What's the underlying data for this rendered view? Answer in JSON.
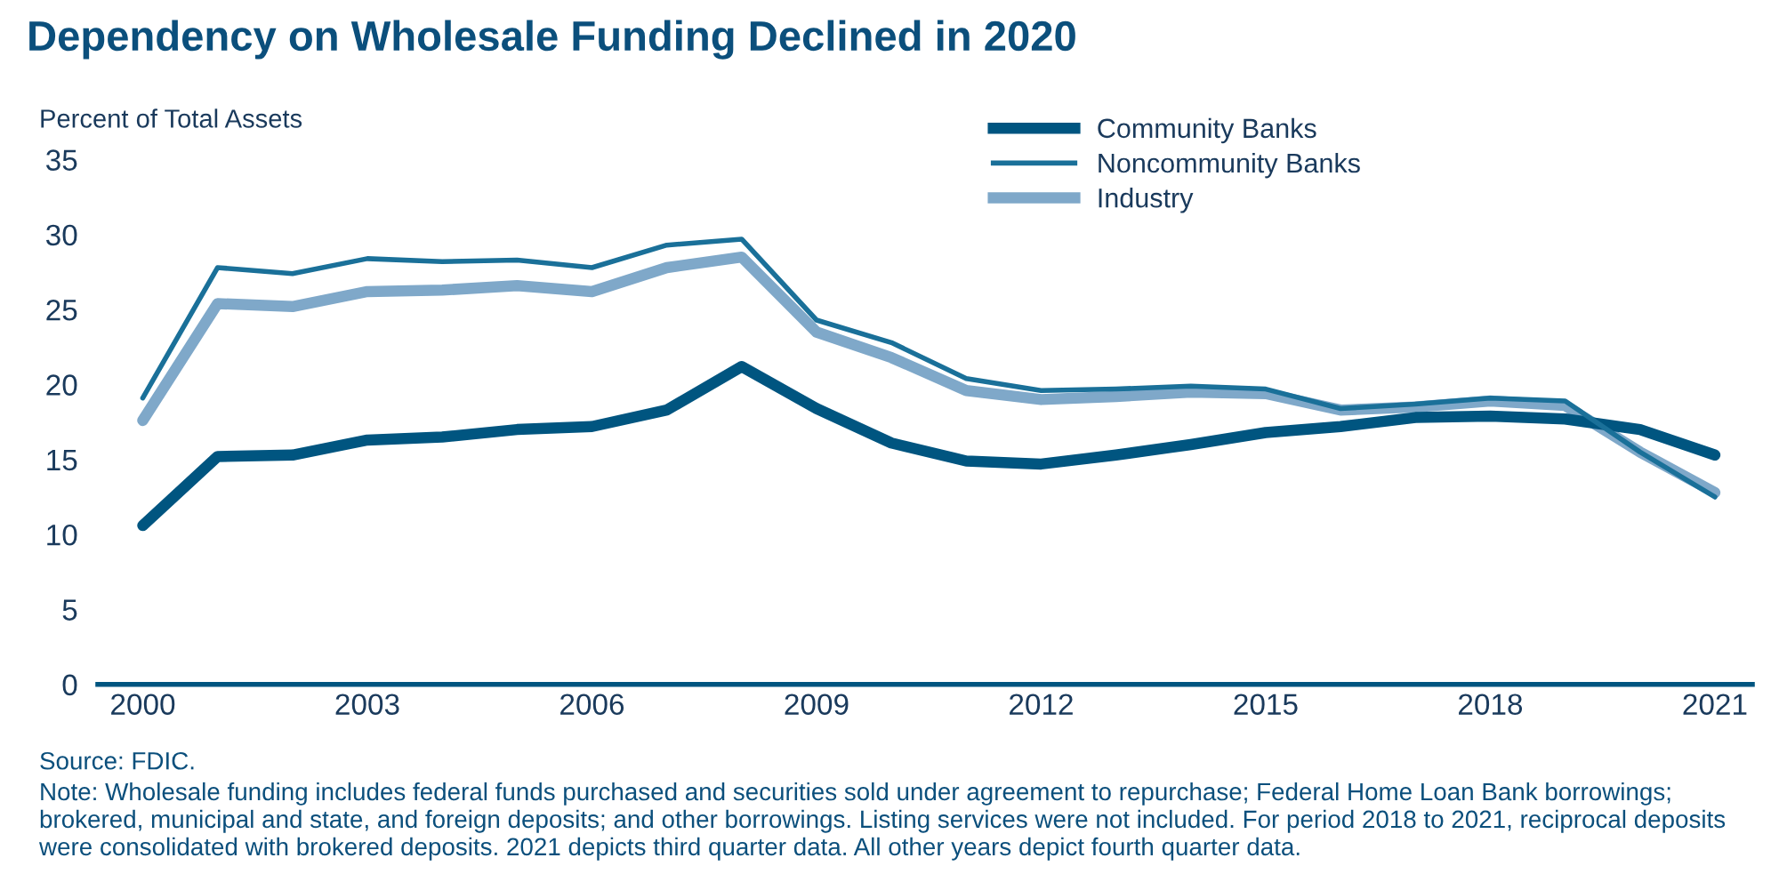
{
  "chart_data": {
    "type": "line",
    "title": "Dependency on Wholesale Funding Declined in 2020",
    "ylabel": "Percent of Total Assets",
    "x": [
      2000,
      2001,
      2002,
      2003,
      2004,
      2005,
      2006,
      2007,
      2008,
      2009,
      2010,
      2011,
      2012,
      2013,
      2014,
      2015,
      2016,
      2017,
      2018,
      2019,
      2020,
      2021
    ],
    "series": [
      {
        "name": "Community Banks",
        "color": "#005580",
        "values": [
          10.6,
          15.2,
          15.3,
          16.3,
          16.5,
          17.0,
          17.2,
          18.3,
          21.2,
          18.4,
          16.1,
          14.9,
          14.7,
          15.3,
          16.0,
          16.8,
          17.2,
          17.8,
          17.9,
          17.7,
          17.0,
          15.3
        ]
      },
      {
        "name": "Noncommunity Banks",
        "color": "#1a7099",
        "values": [
          19.1,
          27.8,
          27.4,
          28.4,
          28.2,
          28.3,
          27.8,
          29.3,
          29.7,
          24.3,
          22.8,
          20.4,
          19.6,
          19.7,
          19.9,
          19.7,
          18.4,
          18.7,
          19.1,
          18.9,
          15.5,
          12.5
        ]
      },
      {
        "name": "Industry",
        "color": "#7fa8c9",
        "values": [
          17.6,
          25.4,
          25.2,
          26.2,
          26.3,
          26.6,
          26.2,
          27.8,
          28.5,
          23.5,
          21.8,
          19.6,
          19.0,
          19.2,
          19.5,
          19.4,
          18.3,
          18.5,
          18.9,
          18.6,
          15.5,
          12.8
        ]
      }
    ],
    "xlim": [
      1999.4,
      2021.5
    ],
    "xticks": [
      2000,
      2003,
      2006,
      2009,
      2012,
      2015,
      2018,
      2021
    ],
    "ylim": [
      0,
      35
    ],
    "yticks": [
      0,
      5,
      10,
      15,
      20,
      25,
      30,
      35
    ],
    "grid": false,
    "legend": "top right",
    "line_style": "solid",
    "marker": "none",
    "annotations": [
      "Source: FDIC.",
      "Note: Wholesale funding includes federal funds purchased and securities sold under agreement to repurchase; Federal Home Loan Bank borrowings; brokered, municipal and state, and foreign deposits; and other borrowings. Listing services were not included. For period 2018 to 2021, reciprocal deposits were consolidated with brokered deposits. 2021 depicts third quarter data. All other years depict fourth quarter data."
    ]
  }
}
